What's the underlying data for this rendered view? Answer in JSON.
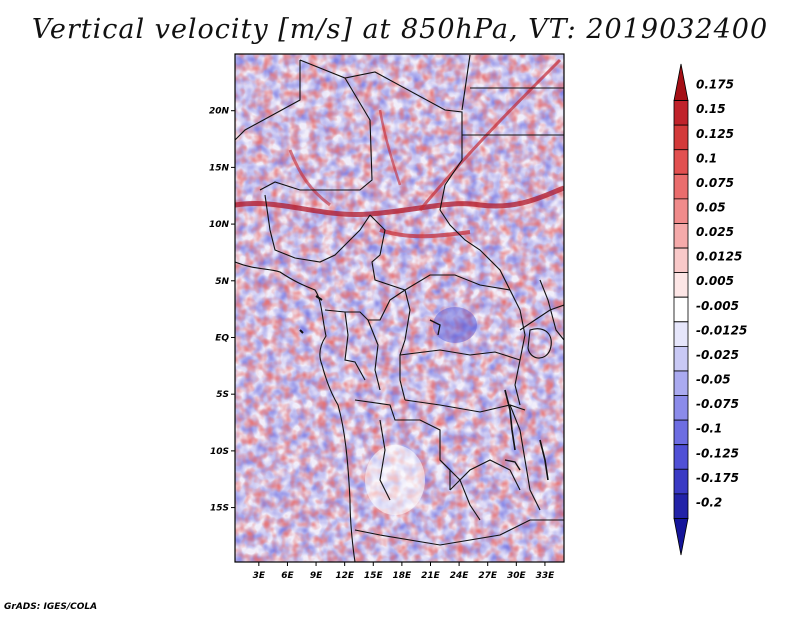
{
  "title": "Vertical velocity [m/s] at 850hPa, VT: 2019032400",
  "credit": "GrADS: IGES/COLA",
  "map": {
    "lat_labels": [
      "20N",
      "15N",
      "10N",
      "5N",
      "EQ",
      "5S",
      "10S",
      "15S"
    ],
    "lat_values": [
      20,
      15,
      10,
      5,
      0,
      -5,
      -10,
      -15
    ],
    "lon_labels": [
      "3E",
      "6E",
      "9E",
      "12E",
      "15E",
      "18E",
      "21E",
      "24E",
      "27E",
      "30E",
      "33E"
    ],
    "lon_values": [
      3,
      6,
      9,
      12,
      15,
      18,
      21,
      24,
      27,
      30,
      33
    ],
    "lon_range": [
      0.5,
      35
    ],
    "lat_range": [
      -19.8,
      25
    ]
  },
  "colorbar": {
    "labels": [
      "0.175",
      "0.15",
      "0.125",
      "0.1",
      "0.075",
      "0.05",
      "0.025",
      "0.0125",
      "0.005",
      "-0.005",
      "-0.0125",
      "-0.025",
      "-0.05",
      "-0.075",
      "-0.1",
      "-0.125",
      "-0.175",
      "-0.2"
    ],
    "colors": [
      "#a50f15",
      "#c0232b",
      "#d33a3a",
      "#e25050",
      "#ea6d6d",
      "#f08b8b",
      "#f5aaaa",
      "#f9c9c9",
      "#fde6e6",
      "#ffffff",
      "#e6e6fb",
      "#c9c9f5",
      "#aaaaf0",
      "#8b8bea",
      "#6d6de2",
      "#5050d6",
      "#3a3ac4",
      "#2323a8",
      "#15159a"
    ]
  }
}
